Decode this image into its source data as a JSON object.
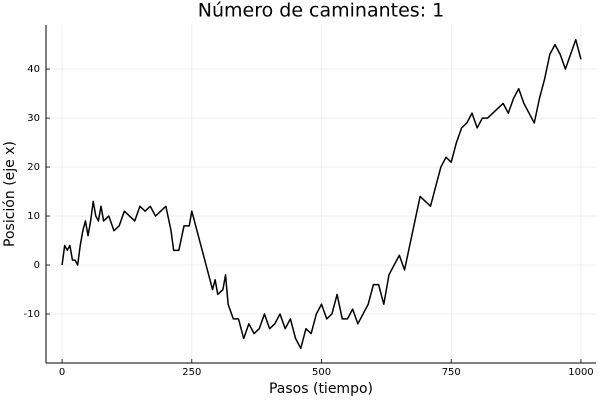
{
  "chart_data": {
    "type": "line",
    "title": "Número de caminantes: 1",
    "xlabel": "Pasos (tiempo)",
    "ylabel": "Posición (eje x)",
    "xlim": [
      -31,
      1029
    ],
    "ylim": [
      -20,
      49
    ],
    "xticks": [
      0,
      250,
      500,
      750,
      1000
    ],
    "yticks": [
      -10,
      0,
      10,
      20,
      30,
      40
    ],
    "grid": true,
    "series": [
      {
        "color": "#000000",
        "x": [
          0,
          5,
          10,
          15,
          20,
          25,
          30,
          35,
          40,
          45,
          50,
          55,
          60,
          65,
          70,
          75,
          80,
          90,
          100,
          110,
          120,
          130,
          140,
          150,
          160,
          170,
          180,
          190,
          200,
          210,
          215,
          225,
          235,
          245,
          250,
          255,
          260,
          265,
          270,
          280,
          290,
          295,
          300,
          310,
          315,
          320,
          330,
          340,
          350,
          360,
          370,
          380,
          390,
          400,
          410,
          420,
          430,
          440,
          450,
          460,
          470,
          480,
          490,
          500,
          510,
          520,
          530,
          540,
          550,
          560,
          570,
          580,
          590,
          600,
          610,
          620,
          630,
          640,
          650,
          660,
          670,
          680,
          690,
          700,
          710,
          720,
          730,
          740,
          750,
          760,
          770,
          780,
          790,
          800,
          810,
          820,
          830,
          840,
          850,
          860,
          870,
          880,
          890,
          900,
          910,
          920,
          930,
          940,
          950,
          960,
          970,
          980,
          990,
          1000
        ],
        "values": [
          0,
          4,
          3,
          4,
          1,
          1,
          0,
          4,
          7,
          9,
          6,
          9,
          13,
          10,
          9,
          12,
          9,
          10,
          7,
          8,
          11,
          10,
          9,
          12,
          11,
          12,
          10,
          11,
          12,
          7,
          3,
          3,
          8,
          8,
          11,
          9,
          7,
          5,
          3,
          -1,
          -5,
          -3,
          -6,
          -5,
          -2,
          -8,
          -11,
          -11,
          -15,
          -12,
          -14,
          -13,
          -10,
          -13,
          -12,
          -10,
          -13,
          -11,
          -15,
          -17,
          -13,
          -14,
          -10,
          -8,
          -11,
          -10,
          -6,
          -11,
          -11,
          -9,
          -12,
          -10,
          -8,
          -4,
          -4,
          -8,
          -2,
          0,
          2,
          -1,
          4,
          9,
          14,
          13,
          12,
          16,
          20,
          22,
          21,
          25,
          28,
          29,
          31,
          28,
          30,
          30,
          31,
          32,
          33,
          31,
          34,
          36,
          33,
          31,
          29,
          34,
          38,
          43,
          45,
          43,
          40,
          43,
          46,
          42
        ]
      }
    ]
  }
}
